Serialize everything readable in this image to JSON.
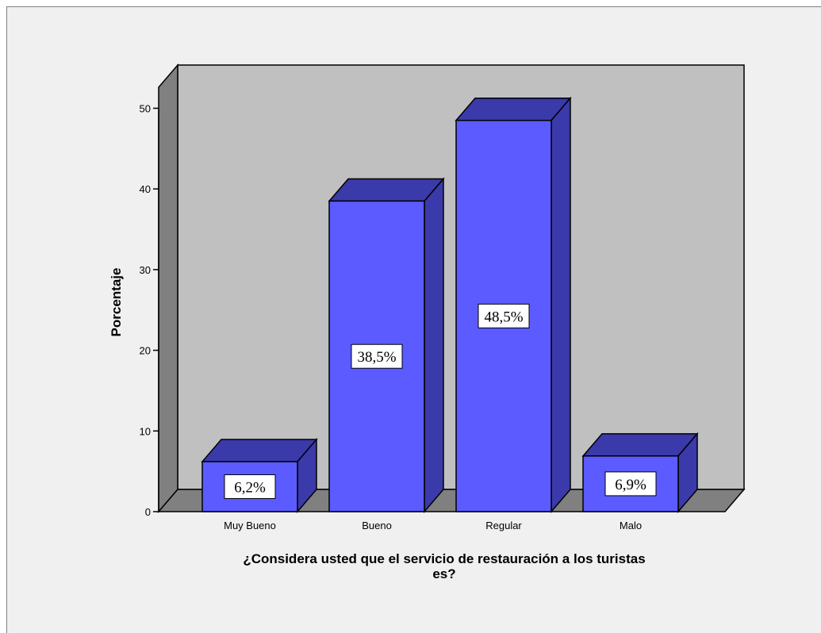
{
  "chart_data": {
    "type": "bar",
    "categories": [
      "Muy Bueno",
      "Bueno",
      "Regular",
      "Malo"
    ],
    "values": [
      6.2,
      38.5,
      48.5,
      6.9
    ],
    "data_labels": [
      "6,2%",
      "38,5%",
      "48,5%",
      "6,9%"
    ],
    "ylabel": "Porcentaje",
    "xlabel_lines": [
      "¿Considera usted que el servicio de restauración a los turistas",
      "es?"
    ],
    "yticks": [
      "0",
      "10",
      "20",
      "30",
      "40",
      "50"
    ],
    "ylim": [
      0,
      50
    ],
    "three_d": true,
    "grid": false,
    "legend": false,
    "colors": {
      "bar_front": "#5b5bff",
      "bar_top": "#3a3aaa",
      "bar_side": "#3a3aaa",
      "wall": "#c0c0c0",
      "floor": "#808080",
      "side_wall": "#808080",
      "frame_background": "#f0f0f0",
      "edge": "#000000"
    }
  }
}
